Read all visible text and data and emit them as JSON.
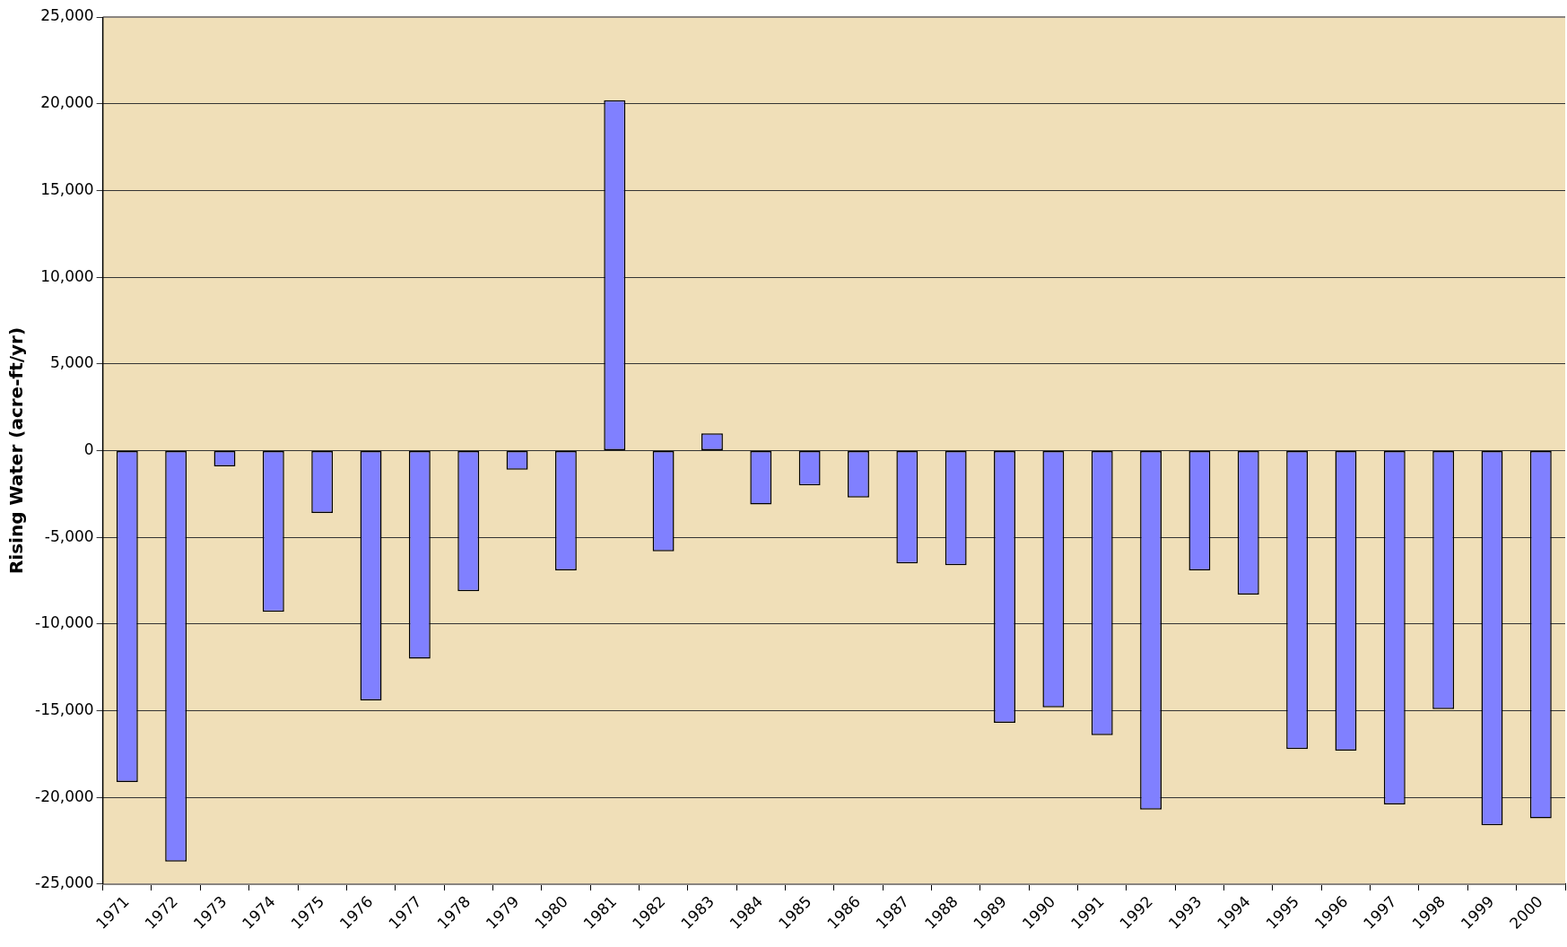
{
  "chart_data": {
    "type": "bar",
    "ylabel": "Rising Water (acre-ft/yr)",
    "categories": [
      "1971",
      "1972",
      "1973",
      "1974",
      "1975",
      "1976",
      "1977",
      "1978",
      "1979",
      "1980",
      "1981",
      "1982",
      "1983",
      "1984",
      "1985",
      "1986",
      "1987",
      "1988",
      "1989",
      "1990",
      "1991",
      "1992",
      "1993",
      "1994",
      "1995",
      "1996",
      "1997",
      "1998",
      "1999",
      "2000"
    ],
    "values": [
      -19100,
      -23700,
      -900,
      -9300,
      -3600,
      -14400,
      -12000,
      -8100,
      -1100,
      -6900,
      20200,
      -5800,
      1000,
      -3100,
      -2000,
      -2700,
      -6500,
      -6600,
      -15700,
      -14800,
      -16400,
      -20700,
      -6900,
      -8300,
      -17200,
      -17300,
      -20400,
      -14900,
      -21600,
      -21200
    ],
    "color": "#8080ff",
    "ylim": [
      -25000,
      25000
    ],
    "yticks": [
      {
        "value": -25000,
        "label": "-25,000"
      },
      {
        "value": -20000,
        "label": "-20,000"
      },
      {
        "value": -15000,
        "label": "-15,000"
      },
      {
        "value": -10000,
        "label": "-10,000"
      },
      {
        "value": -5000,
        "label": "-5,000"
      },
      0,
      {
        "value": 5000,
        "label": "5,000"
      },
      {
        "value": 10000,
        "label": "10,000"
      },
      {
        "value": 15000,
        "label": "15,000"
      },
      {
        "value": 20000,
        "label": "20,000"
      },
      {
        "value": 25000,
        "label": "25,000"
      }
    ],
    "grid": "y",
    "legend": false
  }
}
